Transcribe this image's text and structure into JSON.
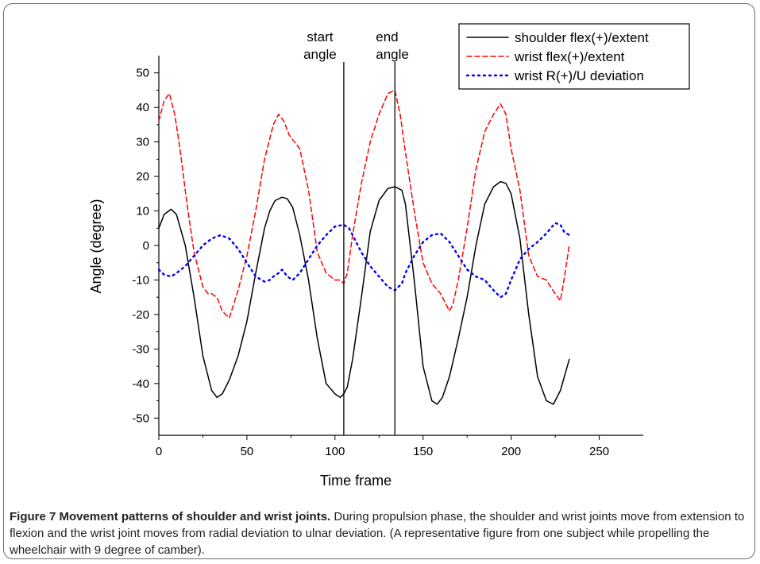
{
  "chart_data": {
    "type": "line",
    "xlabel": "Time frame",
    "ylabel": "Angle (degree)",
    "xlim": [
      0,
      275
    ],
    "ylim": [
      -55,
      55
    ],
    "x_ticks": [
      0,
      50,
      100,
      150,
      200,
      250
    ],
    "y_ticks": [
      -50,
      -40,
      -30,
      -20,
      -10,
      0,
      10,
      20,
      30,
      40,
      50
    ],
    "legend_position": "top-right",
    "series": [
      {
        "name": "shoulder flex(+)/extent",
        "color": "#000000",
        "dash": "solid",
        "x": [
          0,
          3,
          7,
          10,
          15,
          20,
          25,
          30,
          33,
          36,
          40,
          45,
          50,
          55,
          60,
          63,
          66,
          70,
          73,
          76,
          80,
          85,
          90,
          95,
          100,
          103,
          105,
          107,
          110,
          115,
          120,
          125,
          130,
          134,
          138,
          140,
          145,
          150,
          155,
          158,
          161,
          165,
          170,
          175,
          180,
          185,
          190,
          194,
          197,
          200,
          205,
          210,
          215,
          220,
          224,
          228,
          233
        ],
        "y": [
          5,
          9,
          10.5,
          9,
          0,
          -15,
          -32,
          -42,
          -44,
          -43,
          -39,
          -32,
          -22,
          -8,
          5,
          10,
          13,
          14,
          13.5,
          11,
          3,
          -10,
          -27,
          -40,
          -43,
          -44,
          -43,
          -41,
          -33,
          -15,
          4,
          13,
          16.5,
          17,
          16,
          12,
          -10,
          -35,
          -45,
          -46,
          -44,
          -38,
          -27,
          -15,
          0,
          12,
          17,
          18.5,
          18,
          15,
          2,
          -20,
          -38,
          -45,
          -46,
          -42,
          -33
        ]
      },
      {
        "name": "wrist flex(+)/extent",
        "color": "#ff0000",
        "dash": "dashed",
        "x": [
          0,
          3,
          6,
          9,
          12,
          16,
          20,
          25,
          28,
          30,
          33,
          36,
          40,
          45,
          50,
          55,
          60,
          65,
          68,
          71,
          74,
          77,
          80,
          85,
          90,
          95,
          100,
          103,
          105,
          107,
          110,
          115,
          120,
          125,
          130,
          134,
          137,
          140,
          145,
          150,
          155,
          160,
          165,
          167,
          170,
          175,
          180,
          185,
          190,
          194,
          197,
          200,
          205,
          210,
          215,
          220,
          225,
          228,
          230,
          233
        ],
        "y": [
          36,
          42,
          44,
          38,
          28,
          12,
          -2,
          -12,
          -14,
          -14,
          -15,
          -19,
          -21,
          -13,
          -3,
          10,
          25,
          35,
          38,
          36,
          32,
          30,
          28,
          16,
          -2,
          -8,
          -10,
          -10,
          -11,
          -8,
          3,
          18,
          30,
          38,
          44,
          45,
          38,
          27,
          10,
          -5,
          -11,
          -14,
          -19,
          -17,
          -10,
          5,
          22,
          33,
          38,
          41,
          38,
          28,
          16,
          -3,
          -9,
          -10,
          -14,
          -16,
          -10,
          0
        ]
      },
      {
        "name": "wrist R(+)/U deviation",
        "color": "#0000ff",
        "dash": "dotted",
        "x": [
          0,
          3,
          7,
          10,
          15,
          20,
          25,
          30,
          35,
          40,
          45,
          50,
          55,
          60,
          63,
          65,
          68,
          70,
          73,
          76,
          80,
          85,
          90,
          95,
          100,
          105,
          108,
          110,
          115,
          120,
          125,
          130,
          134,
          138,
          140,
          145,
          150,
          155,
          160,
          165,
          170,
          175,
          180,
          185,
          190,
          194,
          197,
          200,
          205,
          210,
          215,
          220,
          225,
          228,
          230,
          233
        ],
        "y": [
          -7,
          -8.5,
          -9,
          -8,
          -6,
          -3,
          0,
          2,
          3,
          2,
          -1,
          -5,
          -9,
          -10.5,
          -10,
          -9,
          -8,
          -7,
          -9,
          -10,
          -8,
          -4,
          0,
          3,
          5.5,
          6,
          5,
          3,
          -2,
          -6,
          -9,
          -12,
          -13,
          -11,
          -8,
          -3,
          1,
          3,
          3.5,
          1,
          -3,
          -7,
          -9,
          -10,
          -13,
          -15,
          -14,
          -10,
          -4,
          -1,
          1,
          3.5,
          6.5,
          6,
          4,
          3
        ]
      }
    ],
    "annotations": [
      {
        "x": 105,
        "label": "start angle",
        "lines": [
          "start",
          "angle"
        ]
      },
      {
        "x": 134,
        "label": "end angle",
        "lines": [
          "end",
          "angle"
        ]
      }
    ]
  },
  "caption": {
    "title": "Figure 7 Movement patterns of shoulder and wrist joints.",
    "text": " During propulsion phase, the shoulder and wrist joints move from extension to flexion and the wrist joint moves from radial deviation to ulnar deviation. (A representative figure from one subject while propelling the wheelchair with 9 degree of camber)."
  }
}
